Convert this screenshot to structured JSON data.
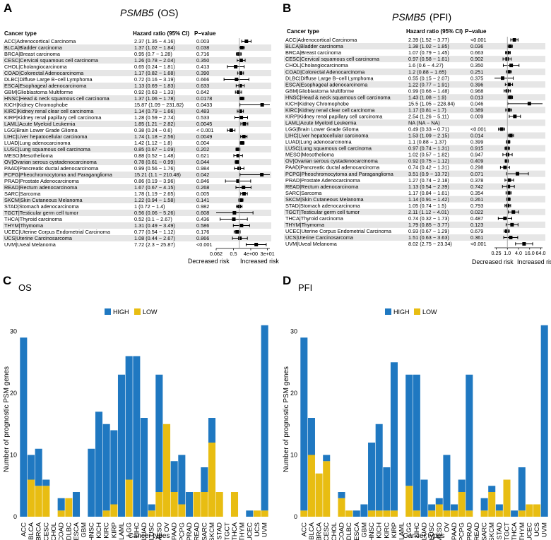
{
  "panel_a": {
    "letter": "A",
    "gene": "PSMB5",
    "endpoint": "(OS)",
    "headers": {
      "cancer": "Cancer type",
      "hr": "Hazard ratio (95% CI)",
      "p": "P−value"
    },
    "risk_left": "Decreased risk",
    "risk_right": "Increased risk",
    "axis_ticks": [
      "0.062",
      "0.5",
      "4e+00",
      "3e+01"
    ]
  },
  "panel_b": {
    "letter": "B",
    "gene": "PSMB5",
    "endpoint": "(PFI)",
    "headers": {
      "cancer": "Cancer type",
      "hr": "Hazard ratio (95% CI)",
      "p": "P−value"
    },
    "risk_left": "Decreased risk",
    "risk_right": "Increased risk",
    "axis_ticks": [
      "0.25",
      "1.0",
      "4.0",
      "16.0",
      "64.0"
    ]
  },
  "panel_c": {
    "letter": "C",
    "title": "OS",
    "legend": [
      "HIGH",
      "LOW"
    ],
    "ylabel": "Number of prognostic PSM genes",
    "xlabel": "Cancer types"
  },
  "panel_d": {
    "letter": "D",
    "title": "PFI",
    "legend": [
      "HIGH",
      "LOW"
    ],
    "ylabel": "Number of prognostic PSM genes",
    "xlabel": "Cancer types"
  },
  "colors": {
    "high": "#1f78c1",
    "low": "#e8bd12",
    "stripe": "#e6e6e6",
    "ref_line": "#a8a8a8"
  },
  "chart_data": [
    {
      "type": "forest",
      "id": "A",
      "title": "PSMB5 (OS)",
      "xscale": "log2",
      "xlim": [
        0.062,
        40
      ],
      "rows": [
        {
          "label": "ACC|Adrenocortical Carcinoma",
          "hr_text": "2.37 (1.35 − 4.16)",
          "p": "0.003",
          "hr": 2.37,
          "lo": 1.35,
          "hi": 4.16
        },
        {
          "label": "BLCA|Bladder carcinoma",
          "hr_text": "1.37 (1.02 − 1.84)",
          "p": "0.038",
          "hr": 1.37,
          "lo": 1.02,
          "hi": 1.84
        },
        {
          "label": "BRCA|Breast carcinoma",
          "hr_text": "0.95 (0.7 − 1.28)",
          "p": "0.716",
          "hr": 0.95,
          "lo": 0.7,
          "hi": 1.28
        },
        {
          "label": "CESC|Cervical squamous cell carcinoma",
          "hr_text": "1.26 (0.78 − 2.04)",
          "p": "0.350",
          "hr": 1.26,
          "lo": 0.78,
          "hi": 2.04
        },
        {
          "label": "CHOL|Cholangiocarcinoma",
          "hr_text": "0.65 (0.24 − 1.81)",
          "p": "0.413",
          "hr": 0.65,
          "lo": 0.24,
          "hi": 1.81
        },
        {
          "label": "COAD|Colorectal Adenocarcinoma",
          "hr_text": "1.17 (0.82 − 1.68)",
          "p": "0.390",
          "hr": 1.17,
          "lo": 0.82,
          "hi": 1.68
        },
        {
          "label": "DLBC|Diffuse Large B−cell Lymphoma",
          "hr_text": "0.72 (0.16 − 3.19)",
          "p": "0.666",
          "hr": 0.72,
          "lo": 0.16,
          "hi": 3.19
        },
        {
          "label": "ESCA|Esophageal adenocarcinoma",
          "hr_text": "1.13 (0.69 − 1.83)",
          "p": "0.633",
          "hr": 1.13,
          "lo": 0.69,
          "hi": 1.83
        },
        {
          "label": "GBM|Glioblastoma Multiforme",
          "hr_text": "0.92 (0.63 − 1.33)",
          "p": "0.642",
          "hr": 0.92,
          "lo": 0.63,
          "hi": 1.33
        },
        {
          "label": "HNSC|Head & neck squamous cell carcinoma",
          "hr_text": "1.37 (1.06 − 1.78)",
          "p": "0.0178",
          "hr": 1.37,
          "lo": 1.06,
          "hi": 1.78
        },
        {
          "label": "KICH|Kidney Chromophobe",
          "hr_text": "15.87 (1.09 − 231.82)",
          "p": "0.0433",
          "hr": 15.87,
          "lo": 1.09,
          "hi": 231.82
        },
        {
          "label": "KIRC|Kidney renal clear cell carcinoma",
          "hr_text": "1.14 (0.79 − 1.66)",
          "p": "0.483",
          "hr": 1.14,
          "lo": 0.79,
          "hi": 1.66
        },
        {
          "label": "KIRP|Kidney renal papillary cell carcinoma",
          "hr_text": "1.28 (0.59 − 2.74)",
          "p": "0.533",
          "hr": 1.28,
          "lo": 0.59,
          "hi": 2.74
        },
        {
          "label": "LAML|Acute Myeloid Leukemia",
          "hr_text": "1.85 (1.21 − 2.82)",
          "p": "0.0045",
          "hr": 1.85,
          "lo": 1.21,
          "hi": 2.82
        },
        {
          "label": "LGG|Brain Lower Grade Glioma",
          "hr_text": "0.38 (0.24 − 0.6)",
          "p": "< 0.001",
          "hr": 0.38,
          "lo": 0.24,
          "hi": 0.6
        },
        {
          "label": "LIHC|Liver hepatocellular carcinoma",
          "hr_text": "1.74 (1.18 − 2.56)",
          "p": "0.0049",
          "hr": 1.74,
          "lo": 1.18,
          "hi": 2.56
        },
        {
          "label": "LUAD|Lung adenocarcinoma",
          "hr_text": "1.42 (1.12 − 1.8)",
          "p": "0.004",
          "hr": 1.42,
          "lo": 1.12,
          "hi": 1.8
        },
        {
          "label": "LUSC|Lung squamous cell carcinoma",
          "hr_text": "0.85 (0.67 − 1.09)",
          "p": "0.202",
          "hr": 0.85,
          "lo": 0.67,
          "hi": 1.09
        },
        {
          "label": "MESO|Mesothelioma",
          "hr_text": "0.88 (0.52 − 1.48)",
          "p": "0.621",
          "hr": 0.88,
          "lo": 0.52,
          "hi": 1.48
        },
        {
          "label": "OV|Ovarian serous cystadenocarcinoma",
          "hr_text": "0.78 (0.61 − 0.99)",
          "p": "0.044",
          "hr": 0.78,
          "lo": 0.61,
          "hi": 0.99
        },
        {
          "label": "PAAD|Pancreatic ductal adenocarcinoma",
          "hr_text": "0.99 (0.56 − 1.76)",
          "p": "0.984",
          "hr": 0.99,
          "lo": 0.56,
          "hi": 1.76
        },
        {
          "label": "PCPG|Pheochromocytoma and Paraganglioma",
          "hr_text": "15.21 (1.1 − 210.48)",
          "p": "0.042",
          "hr": 15.21,
          "lo": 1.1,
          "hi": 210.48
        },
        {
          "label": "PRAD|Prostate Adenocarcinoma",
          "hr_text": "0.86 (0.19 − 3.96)",
          "p": "0.846",
          "hr": 0.86,
          "lo": 0.19,
          "hi": 3.96
        },
        {
          "label": "READ|Rectum adenocarcinoma",
          "hr_text": "1.67 (0.67 − 4.15)",
          "p": "0.268",
          "hr": 1.67,
          "lo": 0.67,
          "hi": 4.15
        },
        {
          "label": "SARC|Sarcoma",
          "hr_text": "1.78 (1.19 − 2.65)",
          "p": "0.005",
          "hr": 1.78,
          "lo": 1.19,
          "hi": 2.65
        },
        {
          "label": "SKCM|Skin Cutaneous Melanoma",
          "hr_text": "1.22 (0.94 − 1.58)",
          "p": "0.141",
          "hr": 1.22,
          "lo": 0.94,
          "hi": 1.58
        },
        {
          "label": "STAD|Stomach adenocarcinoma",
          "hr_text": "1 (0.72 − 1.4)",
          "p": "0.982",
          "hr": 1.0,
          "lo": 0.72,
          "hi": 1.4
        },
        {
          "label": "TGCT|Testicular germ cell tumor",
          "hr_text": "0.56 (0.06 − 5.26)",
          "p": "0.608",
          "hr": 0.56,
          "lo": 0.06,
          "hi": 5.26
        },
        {
          "label": "THCA|Thyroid carcinoma",
          "hr_text": "0.52 (0.1 − 2.67)",
          "p": "0.436",
          "hr": 0.52,
          "lo": 0.1,
          "hi": 2.67
        },
        {
          "label": "THYM|Thymoma",
          "hr_text": "1.31 (0.49 − 3.49)",
          "p": "0.586",
          "hr": 1.31,
          "lo": 0.49,
          "hi": 3.49
        },
        {
          "label": "UCEC|Uterine Corpus Endometrial Carcinoma",
          "hr_text": "0.77 (0.54 − 1.12)",
          "p": "0.176",
          "hr": 0.77,
          "lo": 0.54,
          "hi": 1.12
        },
        {
          "label": "UCS|Uterine Carcinosarcoma",
          "hr_text": "1.08 (0.44 − 2.67)",
          "p": "0.866",
          "hr": 1.08,
          "lo": 0.44,
          "hi": 2.67
        },
        {
          "label": "UVM|Uveal Melanoma",
          "hr_text": "7.72 (2.3 − 25.87)",
          "p": "<0.001",
          "hr": 7.72,
          "lo": 2.3,
          "hi": 25.87
        }
      ]
    },
    {
      "type": "forest",
      "id": "B",
      "title": "PSMB5 (PFI)",
      "xscale": "log2",
      "xlim": [
        0.2,
        80
      ],
      "rows": [
        {
          "label": "ACC|Adrenocortical Carcinoma",
          "hr_text": "2.39 (1.52 − 3.77)",
          "p": "<0.001",
          "hr": 2.39,
          "lo": 1.52,
          "hi": 3.77
        },
        {
          "label": "BLCA|Bladder carcinoma",
          "hr_text": "1.38 (1.02 − 1.85)",
          "p": "0.036",
          "hr": 1.38,
          "lo": 1.02,
          "hi": 1.85
        },
        {
          "label": "BRCA|Breast carcinoma",
          "hr_text": "1.07 (0.79 − 1.45)",
          "p": "0.663",
          "hr": 1.07,
          "lo": 0.79,
          "hi": 1.45
        },
        {
          "label": "CESC|Cervical squamous cell carcinoma",
          "hr_text": "0.97 (0.58 − 1.61)",
          "p": "0.902",
          "hr": 0.97,
          "lo": 0.58,
          "hi": 1.61
        },
        {
          "label": "CHOL|Cholangiocarcinoma",
          "hr_text": "1.6 (0.6 − 4.27)",
          "p": "0.350",
          "hr": 1.6,
          "lo": 0.6,
          "hi": 4.27
        },
        {
          "label": "COAD|Colorectal Adenocarcinoma",
          "hr_text": "1.2 (0.88 − 1.65)",
          "p": "0.251",
          "hr": 1.2,
          "lo": 0.88,
          "hi": 1.65
        },
        {
          "label": "DLBC|Diffuse Large B−cell Lymphoma",
          "hr_text": "0.55 (0.15 − 2.07)",
          "p": "0.375",
          "hr": 0.55,
          "lo": 0.15,
          "hi": 2.07
        },
        {
          "label": "ESCA|Esophageal adenocarcinoma",
          "hr_text": "1.22 (0.77 − 1.91)",
          "p": "0.396",
          "hr": 1.22,
          "lo": 0.77,
          "hi": 1.91
        },
        {
          "label": "GBM|Glioblastoma Multiforme",
          "hr_text": "0.99 (0.66 − 1.48)",
          "p": "0.968",
          "hr": 0.99,
          "lo": 0.66,
          "hi": 1.48
        },
        {
          "label": "HNSC|Head & neck squamous cell carcinoma",
          "hr_text": "1.43 (1.08 − 1.9)",
          "p": "0.013",
          "hr": 1.43,
          "lo": 1.08,
          "hi": 1.9
        },
        {
          "label": "KICH|Kidney Chromophobe",
          "hr_text": "15.5 (1.05 − 228.84)",
          "p": "0.046",
          "hr": 15.5,
          "lo": 1.05,
          "hi": 228.84
        },
        {
          "label": "KIRC|Kidney renal clear cell carcinoma",
          "hr_text": "1.17 (0.81 − 1.7)",
          "p": "0.389",
          "hr": 1.17,
          "lo": 0.81,
          "hi": 1.7
        },
        {
          "label": "KIRP|Kidney renal papillary cell carcinoma",
          "hr_text": "2.54 (1.26 − 5.11)",
          "p": "0.009",
          "hr": 2.54,
          "lo": 1.26,
          "hi": 5.11
        },
        {
          "label": "LAML|Acute Myeloid Leukemia",
          "hr_text": "NA (NA − NA)",
          "p": "",
          "hr": null,
          "lo": null,
          "hi": null
        },
        {
          "label": "LGG|Brain Lower Grade Glioma",
          "hr_text": "0.49 (0.33 − 0.71)",
          "p": "<0.001",
          "hr": 0.49,
          "lo": 0.33,
          "hi": 0.71
        },
        {
          "label": "LIHC|Liver hepatocellular carcinoma",
          "hr_text": "1.53 (1.09 − 2.15)",
          "p": "0.014",
          "hr": 1.53,
          "lo": 1.09,
          "hi": 2.15
        },
        {
          "label": "LUAD|Lung adenocarcinoma",
          "hr_text": "1.1 (0.88 − 1.37)",
          "p": "0.399",
          "hr": 1.1,
          "lo": 0.88,
          "hi": 1.37
        },
        {
          "label": "LUSC|Lung squamous cell carcinoma",
          "hr_text": "0.97 (0.74 − 1.31)",
          "p": "0.915",
          "hr": 0.97,
          "lo": 0.74,
          "hi": 1.31
        },
        {
          "label": "MESO|Mesothelioma",
          "hr_text": "1.02 (0.57 − 1.82)",
          "p": "0.947",
          "hr": 1.02,
          "lo": 0.57,
          "hi": 1.82
        },
        {
          "label": "OV|Ovarian serous cystadenocarcinoma",
          "hr_text": "0.92 (0.75 − 1.12)",
          "p": "0.409",
          "hr": 0.92,
          "lo": 0.75,
          "hi": 1.12
        },
        {
          "label": "PAAD|Pancreatic ductal adenocarcinoma",
          "hr_text": "0.74 (0.42 − 1.31)",
          "p": "0.298",
          "hr": 0.74,
          "lo": 0.42,
          "hi": 1.31
        },
        {
          "label": "PCPG|Pheochromocytoma and Paraganglioma",
          "hr_text": "3.51 (0.9 − 13.72)",
          "p": "0.071",
          "hr": 3.51,
          "lo": 0.9,
          "hi": 13.72
        },
        {
          "label": "PRAD|Prostate Adenocarcinoma",
          "hr_text": "1.27 (0.74 − 2.18)",
          "p": "0.378",
          "hr": 1.27,
          "lo": 0.74,
          "hi": 2.18
        },
        {
          "label": "READ|Rectum adenocarcinoma",
          "hr_text": "1.13 (0.54 − 2.39)",
          "p": "0.742",
          "hr": 1.13,
          "lo": 0.54,
          "hi": 2.39
        },
        {
          "label": "SARC|Sarcoma",
          "hr_text": "1.17 (0.84 − 1.61)",
          "p": "0.354",
          "hr": 1.17,
          "lo": 0.84,
          "hi": 1.61
        },
        {
          "label": "SKCM|Skin Cutaneous Melanoma",
          "hr_text": "1.14 (0.91 − 1.42)",
          "p": "0.261",
          "hr": 1.14,
          "lo": 0.91,
          "hi": 1.42
        },
        {
          "label": "STAD|Stomach adenocarcinoma",
          "hr_text": "1.05 (0.74 − 1.5)",
          "p": "0.793",
          "hr": 1.05,
          "lo": 0.74,
          "hi": 1.5
        },
        {
          "label": "TGCT|Testicular germ cell tumor",
          "hr_text": "2.11 (1.12 − 4.01)",
          "p": "0.022",
          "hr": 2.11,
          "lo": 1.12,
          "hi": 4.01
        },
        {
          "label": "THCA|Thyroid carcinoma",
          "hr_text": "0.74 (0.32 − 1.73)",
          "p": "0.487",
          "hr": 0.74,
          "lo": 0.32,
          "hi": 1.73
        },
        {
          "label": "THYM|Thymoma",
          "hr_text": "1.79 (0.85 − 3.77)",
          "p": "0.123",
          "hr": 1.79,
          "lo": 0.85,
          "hi": 3.77
        },
        {
          "label": "UCEC|Uterine Corpus Endometrial Carcinoma",
          "hr_text": "0.93 (0.67 − 1.29)",
          "p": "0.679",
          "hr": 0.93,
          "lo": 0.67,
          "hi": 1.29
        },
        {
          "label": "UCS|Uterine Carcinosarcoma",
          "hr_text": "1.51 (0.63 − 3.63)",
          "p": "0.361",
          "hr": 1.51,
          "lo": 0.63,
          "hi": 3.63
        },
        {
          "label": "UVM|Uveal Melanoma",
          "hr_text": "8.02 (2.75 − 23.34)",
          "p": "<0.001",
          "hr": 8.02,
          "lo": 2.75,
          "hi": 23.34
        }
      ]
    },
    {
      "type": "bar",
      "stacked": true,
      "id": "C",
      "title": "OS",
      "xlabel": "Cancer types",
      "ylabel": "Number of prognostic PSM genes",
      "ylim": [
        0,
        32
      ],
      "yticks": [
        0,
        10,
        20,
        30
      ],
      "categories": [
        "ACC",
        "BLCA",
        "BRCA",
        "CESC",
        "CHOL",
        "COAD",
        "DLBC",
        "ESCA",
        "GBM",
        "HNSC",
        "KICH",
        "KIRC",
        "KIRP",
        "LAML",
        "LGG",
        "LIHC",
        "LUAD",
        "LUSC",
        "MESO",
        "OV",
        "PAAD",
        "PCPG",
        "PRAD",
        "READ",
        "SARC",
        "SKCM",
        "STAD",
        "TGCT",
        "THCA",
        "THYM",
        "UCEC",
        "UCS",
        "UVM"
      ],
      "series": [
        {
          "name": "LOW",
          "values": [
            0,
            6,
            5,
            5,
            0,
            1,
            3,
            0,
            0,
            0,
            0,
            1,
            2,
            0,
            6,
            0,
            0,
            1,
            4,
            15,
            4,
            2,
            0,
            4,
            4,
            12,
            4,
            0,
            4,
            0,
            0,
            1,
            1
          ]
        },
        {
          "name": "HIGH",
          "values": [
            29,
            4,
            6,
            1,
            0,
            2,
            0,
            4,
            0,
            11,
            17,
            14,
            12,
            23,
            20,
            26,
            16,
            1,
            19,
            0,
            5,
            8,
            4,
            0,
            4,
            4,
            0,
            0,
            0,
            0,
            1,
            0,
            30
          ]
        }
      ]
    },
    {
      "type": "bar",
      "stacked": true,
      "id": "D",
      "title": "PFI",
      "xlabel": "Cancer types",
      "ylabel": "Number of prognostic PSM genes",
      "ylim": [
        0,
        32
      ],
      "yticks": [
        0,
        10,
        20,
        30
      ],
      "categories": [
        "ACC",
        "BLCA",
        "BRCA",
        "CESC",
        "CHOL",
        "COAD",
        "DLBC",
        "ESCA",
        "GBM",
        "HNSC",
        "KICH",
        "KIRC",
        "KIRP",
        "LAML",
        "LGG",
        "LIHC",
        "LUAD",
        "LUSC",
        "MESO",
        "OV",
        "PAAD",
        "PCPG",
        "PRAD",
        "READ",
        "SARC",
        "SKCM",
        "STAD",
        "TGCT",
        "THCA",
        "THYM",
        "UCEC",
        "UCS",
        "UVM"
      ],
      "series": [
        {
          "name": "LOW",
          "values": [
            1,
            10,
            7,
            9,
            0,
            3,
            1,
            0,
            0,
            1,
            1,
            1,
            1,
            0,
            5,
            1,
            0,
            1,
            2,
            1,
            1,
            4,
            1,
            0,
            1,
            4,
            1,
            6,
            0,
            1,
            2,
            2,
            0
          ]
        },
        {
          "name": "HIGH",
          "values": [
            28,
            6,
            0,
            1,
            0,
            1,
            0,
            1,
            2,
            11,
            14,
            7,
            24,
            0,
            18,
            22,
            6,
            1,
            1,
            9,
            1,
            2,
            22,
            0,
            2,
            1,
            1,
            0,
            1,
            7,
            0,
            0,
            31
          ]
        }
      ]
    }
  ]
}
